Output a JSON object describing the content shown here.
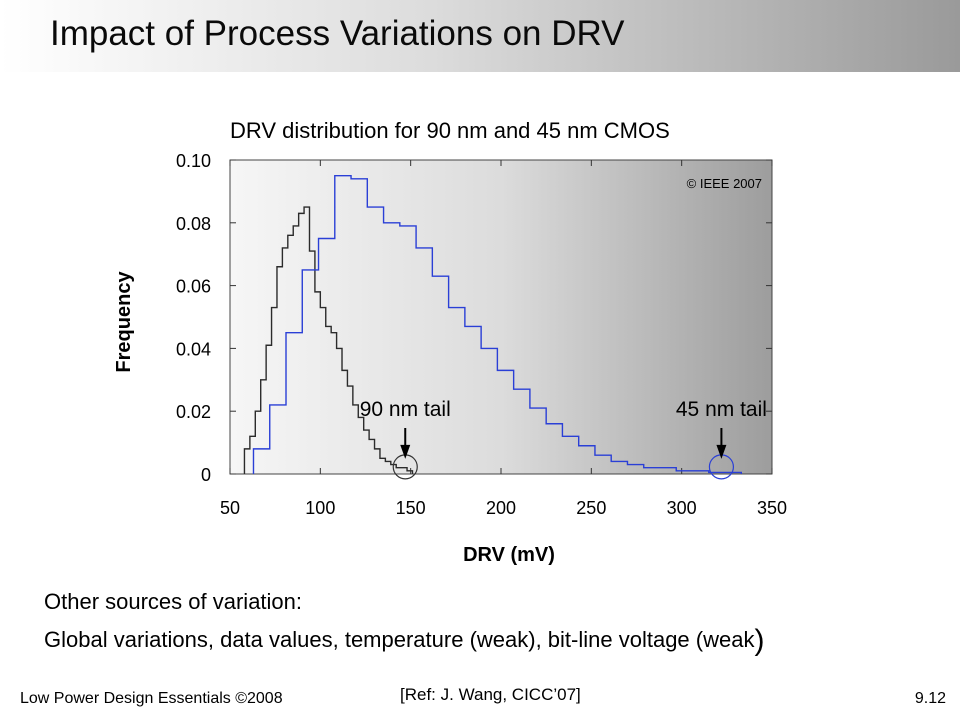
{
  "slide": {
    "title": "Impact of Process Variations on DRV",
    "notes_heading": "Other sources of variation:",
    "notes_body": "Global variations, data values, temperature (weak), bit-line voltage (weak",
    "notes_close_paren": ")",
    "footer_left": "Low Power Design Essentials ©2008",
    "footer_ref": "[Ref: J. Wang, CICC’07]",
    "page_number": "9.12"
  },
  "chart_data": {
    "type": "line",
    "title": "DRV distribution for 90 nm and 45 nm CMOS",
    "xlabel": "DRV (mV)",
    "ylabel": "Frequency",
    "xlim": [
      50,
      350
    ],
    "ylim": [
      0,
      0.1
    ],
    "xticks": [
      "50",
      "100",
      "150",
      "200",
      "250",
      "300",
      "350"
    ],
    "yticks": [
      "0",
      "0.02",
      "0.04",
      "0.06",
      "0.08",
      "0.10"
    ],
    "copyright": "© IEEE 2007",
    "annotations": [
      {
        "text": "90 nm tail",
        "x": 147,
        "y": 0.001
      },
      {
        "text": "45 nm tail",
        "x": 322,
        "y": 0.001
      }
    ],
    "colors": {
      "series_90nm": "#2b2b2b",
      "series_45nm": "#2a3fd6"
    },
    "series": [
      {
        "key": "90nm",
        "x": [
          58,
          61,
          64,
          67,
          70,
          73,
          76,
          79,
          82,
          85,
          88,
          91,
          94,
          97,
          100,
          103,
          106,
          109,
          112,
          115,
          118,
          121,
          124,
          127,
          130,
          133,
          136,
          139,
          142,
          145,
          148
        ],
        "values": [
          0.008,
          0.012,
          0.02,
          0.03,
          0.041,
          0.053,
          0.066,
          0.072,
          0.076,
          0.079,
          0.083,
          0.085,
          0.071,
          0.058,
          0.053,
          0.047,
          0.045,
          0.04,
          0.033,
          0.028,
          0.022,
          0.018,
          0.014,
          0.011,
          0.008,
          0.005,
          0.004,
          0.003,
          0.002,
          0.002,
          0.001
        ]
      },
      {
        "key": "45nm",
        "x": [
          63,
          72,
          81,
          90,
          99,
          108,
          117,
          126,
          135,
          144,
          153,
          162,
          171,
          180,
          189,
          198,
          207,
          216,
          225,
          234,
          243,
          252,
          261,
          270,
          279,
          288,
          297,
          306,
          315,
          324
        ],
        "values": [
          0.008,
          0.022,
          0.045,
          0.065,
          0.075,
          0.095,
          0.094,
          0.085,
          0.08,
          0.079,
          0.072,
          0.063,
          0.053,
          0.047,
          0.04,
          0.033,
          0.027,
          0.021,
          0.016,
          0.012,
          0.009,
          0.006,
          0.004,
          0.003,
          0.002,
          0.002,
          0.001,
          0.001,
          0.0005,
          0.0005
        ]
      }
    ]
  }
}
